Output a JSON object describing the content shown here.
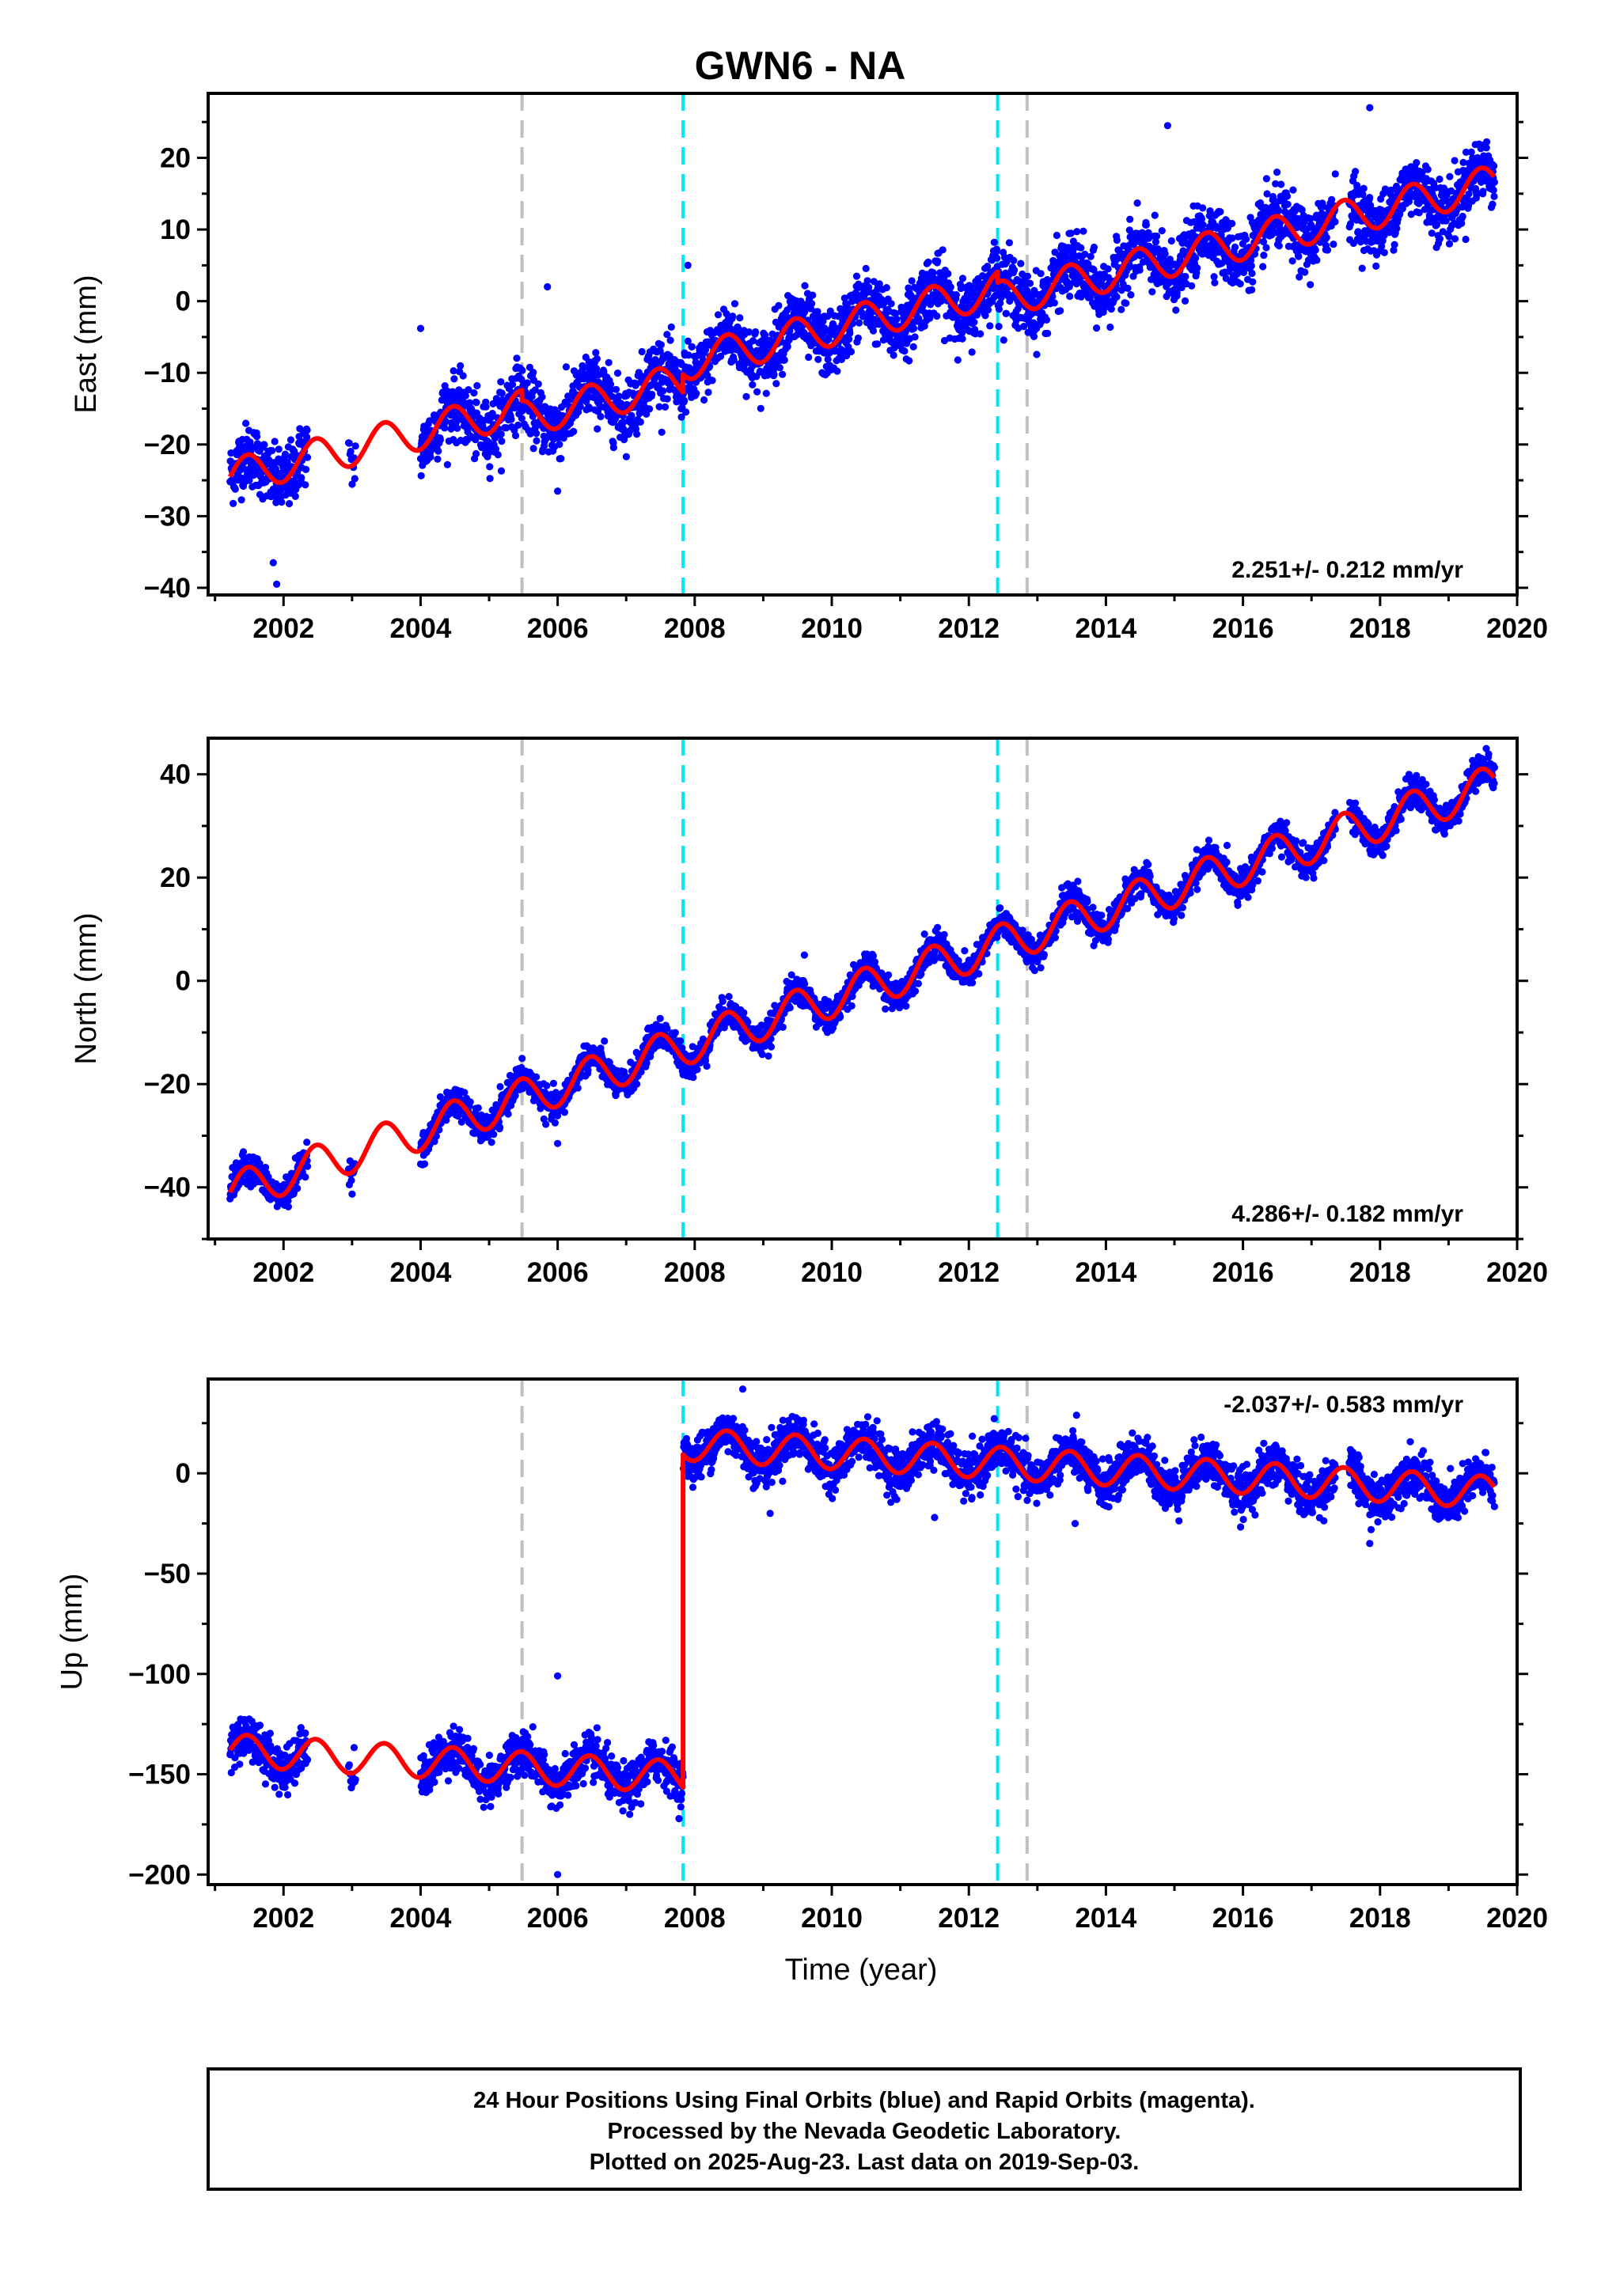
{
  "title": "GWN6 - NA",
  "xlabel": "Time (year)",
  "footer": {
    "lines": [
      "24 Hour Positions Using Final Orbits (blue) and Rapid Orbits (magenta).",
      "Processed by the Nevada Geodetic Laboratory.",
      "Plotted on 2025-Aug-23. Last data on 2019-Sep-03."
    ]
  },
  "colors": {
    "data_points": "#0000ff",
    "model_fit": "#ff0000",
    "equipment_change": "#c0c0c0",
    "earthquake": "#00e5ff"
  },
  "chart_data": [
    {
      "type": "scatter",
      "name": "east",
      "ylabel": "East (mm)",
      "xlim": [
        2000.9,
        2020.0
      ],
      "ylim": [
        -41,
        29
      ],
      "x_ticks": [
        2002,
        2004,
        2006,
        2008,
        2010,
        2012,
        2014,
        2016,
        2018,
        2020
      ],
      "y_ticks": [
        -40,
        -30,
        -20,
        -10,
        0,
        10,
        20
      ],
      "y_tick_labels": [
        "−40",
        "−30",
        "−20",
        "−10",
        "0",
        "10",
        "20"
      ],
      "rate_label": "2.251+/- 0.212 mm/yr",
      "rate_placement": "bottom-right",
      "rate_mm_per_yr": 2.251,
      "annual_amplitude_mm": 2.5,
      "intercept_2001": -24.5,
      "steps": [
        {
          "x": 2005.48,
          "dy": -1.5
        },
        {
          "x": 2007.83,
          "dy": 2.5
        },
        {
          "x": 2012.42,
          "dy": -1.5
        }
      ],
      "noise_mm": 2.2,
      "outliers": [
        [
          2001.9,
          -39.5
        ],
        [
          2001.85,
          -36.5
        ],
        [
          2006.0,
          -26.5
        ],
        [
          2005.85,
          2.0
        ],
        [
          2007.9,
          5.0
        ],
        [
          2014.9,
          24.5
        ],
        [
          2017.85,
          27.0
        ],
        [
          2004.0,
          -3.8
        ]
      ]
    },
    {
      "type": "scatter",
      "name": "north",
      "ylabel": "North (mm)",
      "xlim": [
        2000.9,
        2020.0
      ],
      "ylim": [
        -50,
        47
      ],
      "x_ticks": [
        2002,
        2004,
        2006,
        2008,
        2010,
        2012,
        2014,
        2016,
        2018,
        2020
      ],
      "y_ticks": [
        -40,
        -20,
        0,
        20,
        40
      ],
      "y_tick_labels": [
        "−40",
        "−20",
        "0",
        "20",
        "40"
      ],
      "rate_label": "4.286+/- 0.182 mm/yr",
      "rate_placement": "bottom-right",
      "rate_mm_per_yr": 4.286,
      "annual_amplitude_mm": 3.8,
      "intercept_2001": -41.0,
      "steps": [
        {
          "x": 2005.48,
          "dy": 0.0
        },
        {
          "x": 2007.83,
          "dy": 0.0
        },
        {
          "x": 2012.42,
          "dy": 0.0
        }
      ],
      "noise_mm": 1.4,
      "outliers": [
        [
          2006.0,
          -31.5
        ],
        [
          2009.6,
          5.0
        ],
        [
          2019.55,
          45.0
        ]
      ]
    },
    {
      "type": "scatter",
      "name": "up",
      "ylabel": "Up (mm)",
      "xlim": [
        2000.9,
        2020.0
      ],
      "ylim": [
        -205,
        47
      ],
      "x_ticks": [
        2002,
        2004,
        2006,
        2008,
        2010,
        2012,
        2014,
        2016,
        2018,
        2020
      ],
      "y_ticks": [
        -200,
        -150,
        -100,
        -50,
        0
      ],
      "y_tick_labels": [
        "−200",
        "−150",
        "−100",
        "−50",
        "0"
      ],
      "rate_label": "-2.037+/- 0.583 mm/yr",
      "rate_placement": "top-right",
      "rate_mm_per_yr": -2.037,
      "annual_amplitude_mm": 8.0,
      "intercept_2001": -138.0,
      "steps": [
        {
          "x": 2005.48,
          "dy": 0.0
        },
        {
          "x": 2007.83,
          "dy": 166.0
        },
        {
          "x": 2012.42,
          "dy": 0.0
        }
      ],
      "noise_mm": 5.5,
      "outliers": [
        [
          2006.0,
          -101.0
        ],
        [
          2006.0,
          -200.0
        ],
        [
          2008.7,
          42.0
        ],
        [
          2017.85,
          -35.0
        ],
        [
          2009.1,
          -20.0
        ],
        [
          2011.5,
          -22.0
        ],
        [
          2013.55,
          -25.0
        ]
      ]
    }
  ],
  "data_segments": [
    [
      2001.22,
      2002.35
    ],
    [
      2002.95,
      2003.05
    ],
    [
      2004.0,
      2017.35
    ],
    [
      2017.55,
      2019.67
    ]
  ],
  "event_lines": [
    {
      "x": 2005.48,
      "kind": "equipment_change"
    },
    {
      "x": 2007.83,
      "kind": "earthquake"
    },
    {
      "x": 2012.42,
      "kind": "earthquake"
    },
    {
      "x": 2012.85,
      "kind": "equipment_change"
    }
  ],
  "model_range": [
    2001.22,
    2019.67
  ]
}
